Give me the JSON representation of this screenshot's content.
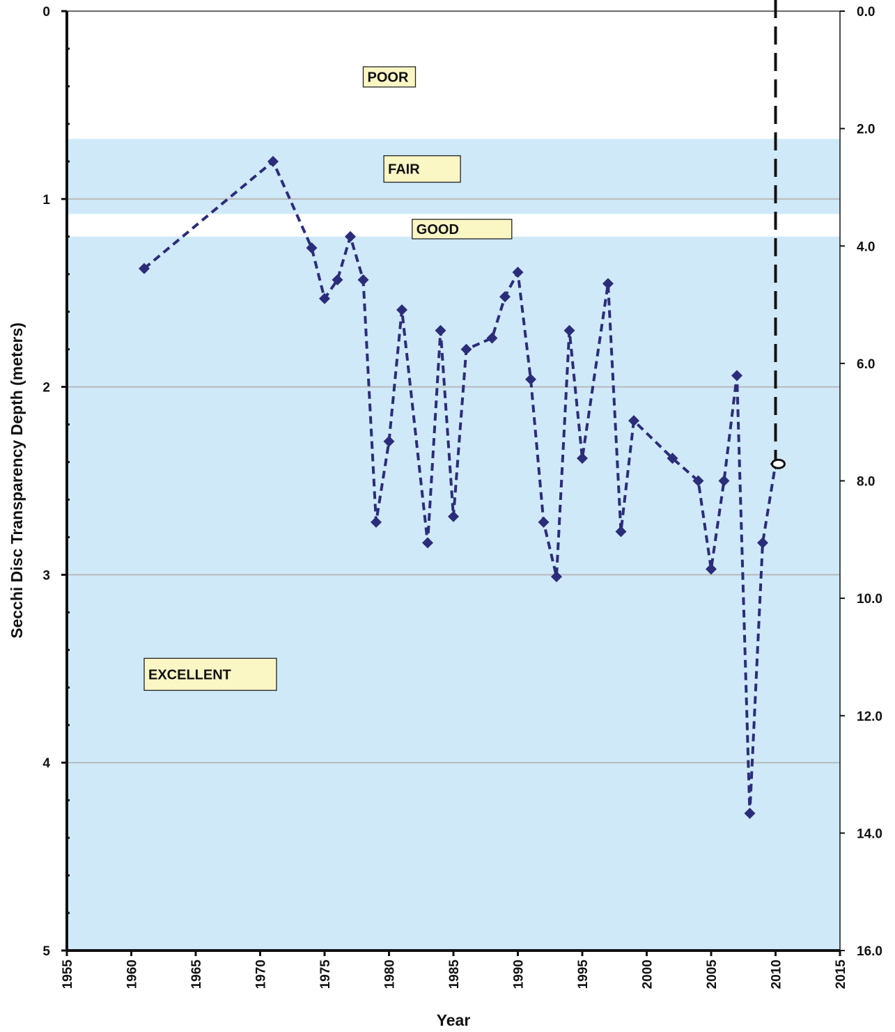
{
  "chart_data": {
    "type": "line",
    "xlabel": "Year",
    "ylabel": "Secchi Disc Transparency Depth (meters)",
    "xlim": [
      1955,
      2015
    ],
    "ylim": [
      0,
      5
    ],
    "y_inverted": true,
    "x_ticks": [
      "1955",
      "1960",
      "1965",
      "1970",
      "1975",
      "1980",
      "1985",
      "1990",
      "1995",
      "2000",
      "2005",
      "2010",
      "2015"
    ],
    "y_ticks": [
      "0",
      "1",
      "2",
      "3",
      "4",
      "5"
    ],
    "y2_ticks": [
      "0.0",
      "2.0",
      "4.0",
      "6.0",
      "8.0",
      "10.0",
      "12.0",
      "14.0",
      "16.0"
    ],
    "y2lim": [
      0,
      16
    ],
    "grid": "horizontal at y=1,2,3,4",
    "x_ticks_rotated": true,
    "zones": [
      {
        "label": "POOR",
        "from": 0,
        "to": 0.68,
        "color": "#ffffff",
        "label_x": 1978,
        "label_y": 0.35
      },
      {
        "label": "FAIR",
        "from": 0.68,
        "to": 1.08,
        "color": "#cfe9f9",
        "label_x": 1979.6,
        "label_y": 0.84
      },
      {
        "label": "GOOD",
        "from": 1.08,
        "to": 1.2,
        "color": "#ffffff",
        "label_x": 1981.8,
        "label_y": 1.16
      },
      {
        "label": "EXCELLENT",
        "from": 1.2,
        "to": 5,
        "color": "#cfe9f9",
        "label_x": 1961,
        "label_y": 3.53
      }
    ],
    "series": [
      {
        "color": "#2b2d7a",
        "style": "dashed",
        "marker": "diamond",
        "x": [
          1961,
          1971,
          1974,
          1975,
          1976,
          1977,
          1978,
          1979,
          1980,
          1981,
          1983,
          1984,
          1985,
          1986,
          1988,
          1989,
          1990,
          1991,
          1992,
          1993,
          1994,
          1995,
          1997,
          1998,
          1999,
          2002,
          2004,
          2005,
          2006,
          2007,
          2008,
          2009,
          2010
        ],
        "y": [
          1.37,
          0.8,
          1.26,
          1.53,
          1.43,
          1.2,
          1.43,
          2.72,
          2.29,
          1.59,
          2.83,
          1.7,
          2.69,
          1.8,
          1.74,
          1.52,
          1.39,
          1.96,
          2.72,
          3.01,
          1.7,
          2.38,
          1.45,
          2.77,
          2.18,
          2.38,
          2.5,
          2.97,
          2.5,
          1.94,
          4.27,
          2.83,
          2.41
        ]
      }
    ],
    "reference_line": {
      "x": 2010,
      "style": "dashed",
      "color": "#111111"
    },
    "highlight_point": {
      "x": 2010,
      "y": 2.41,
      "marker": "ellipse"
    }
  }
}
